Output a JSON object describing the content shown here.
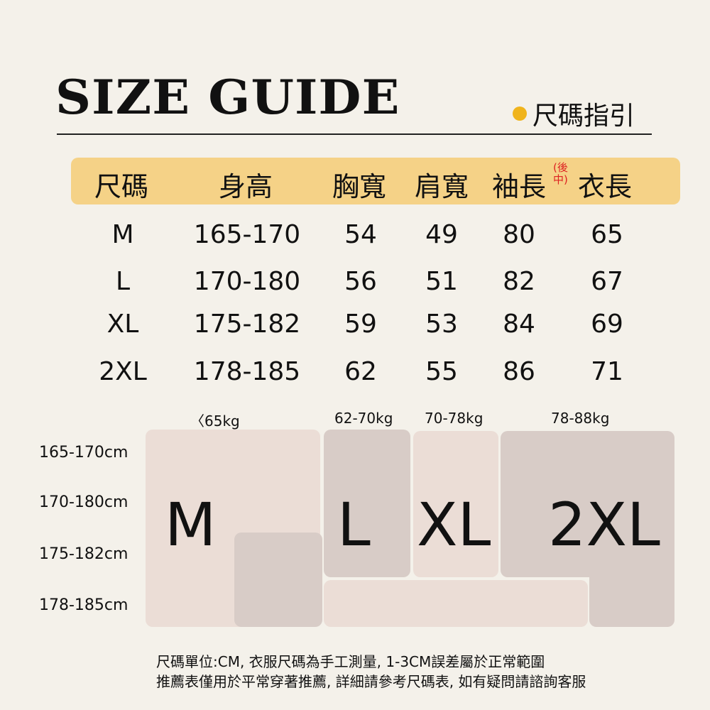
{
  "title": "SIZE GUIDE",
  "subtitle": "尺碼指引",
  "accent": "#f0b41c",
  "headers": [
    "尺碼",
    "身高",
    "胸寬",
    "肩寬",
    "袖長",
    "衣長"
  ],
  "sleeve_note": [
    "(後",
    "中)"
  ],
  "rows": [
    [
      "M",
      "165-170",
      "54",
      "49",
      "80",
      "65"
    ],
    [
      "L",
      "170-180",
      "56",
      "51",
      "82",
      "67"
    ],
    [
      "XL",
      "175-182",
      "59",
      "53",
      "84",
      "69"
    ],
    [
      "2XL",
      "178-185",
      "62",
      "55",
      "86",
      "71"
    ]
  ],
  "chart": {
    "weights": [
      "〈65kg",
      "62-70kg",
      "70-78kg",
      "78-88kg"
    ],
    "heights": [
      "165-170cm",
      "170-180cm",
      "175-182cm",
      "178-185cm"
    ],
    "sizes": [
      "M",
      "L",
      "XL",
      "2XL"
    ]
  },
  "footer": [
    "尺碼單位:CM, 衣服尺碼為手工測量, 1-3CM誤差屬於正常範圍",
    "推薦表僅用於平常穿著推薦, 詳細請參考尺碼表, 如有疑問請諮詢客服"
  ]
}
